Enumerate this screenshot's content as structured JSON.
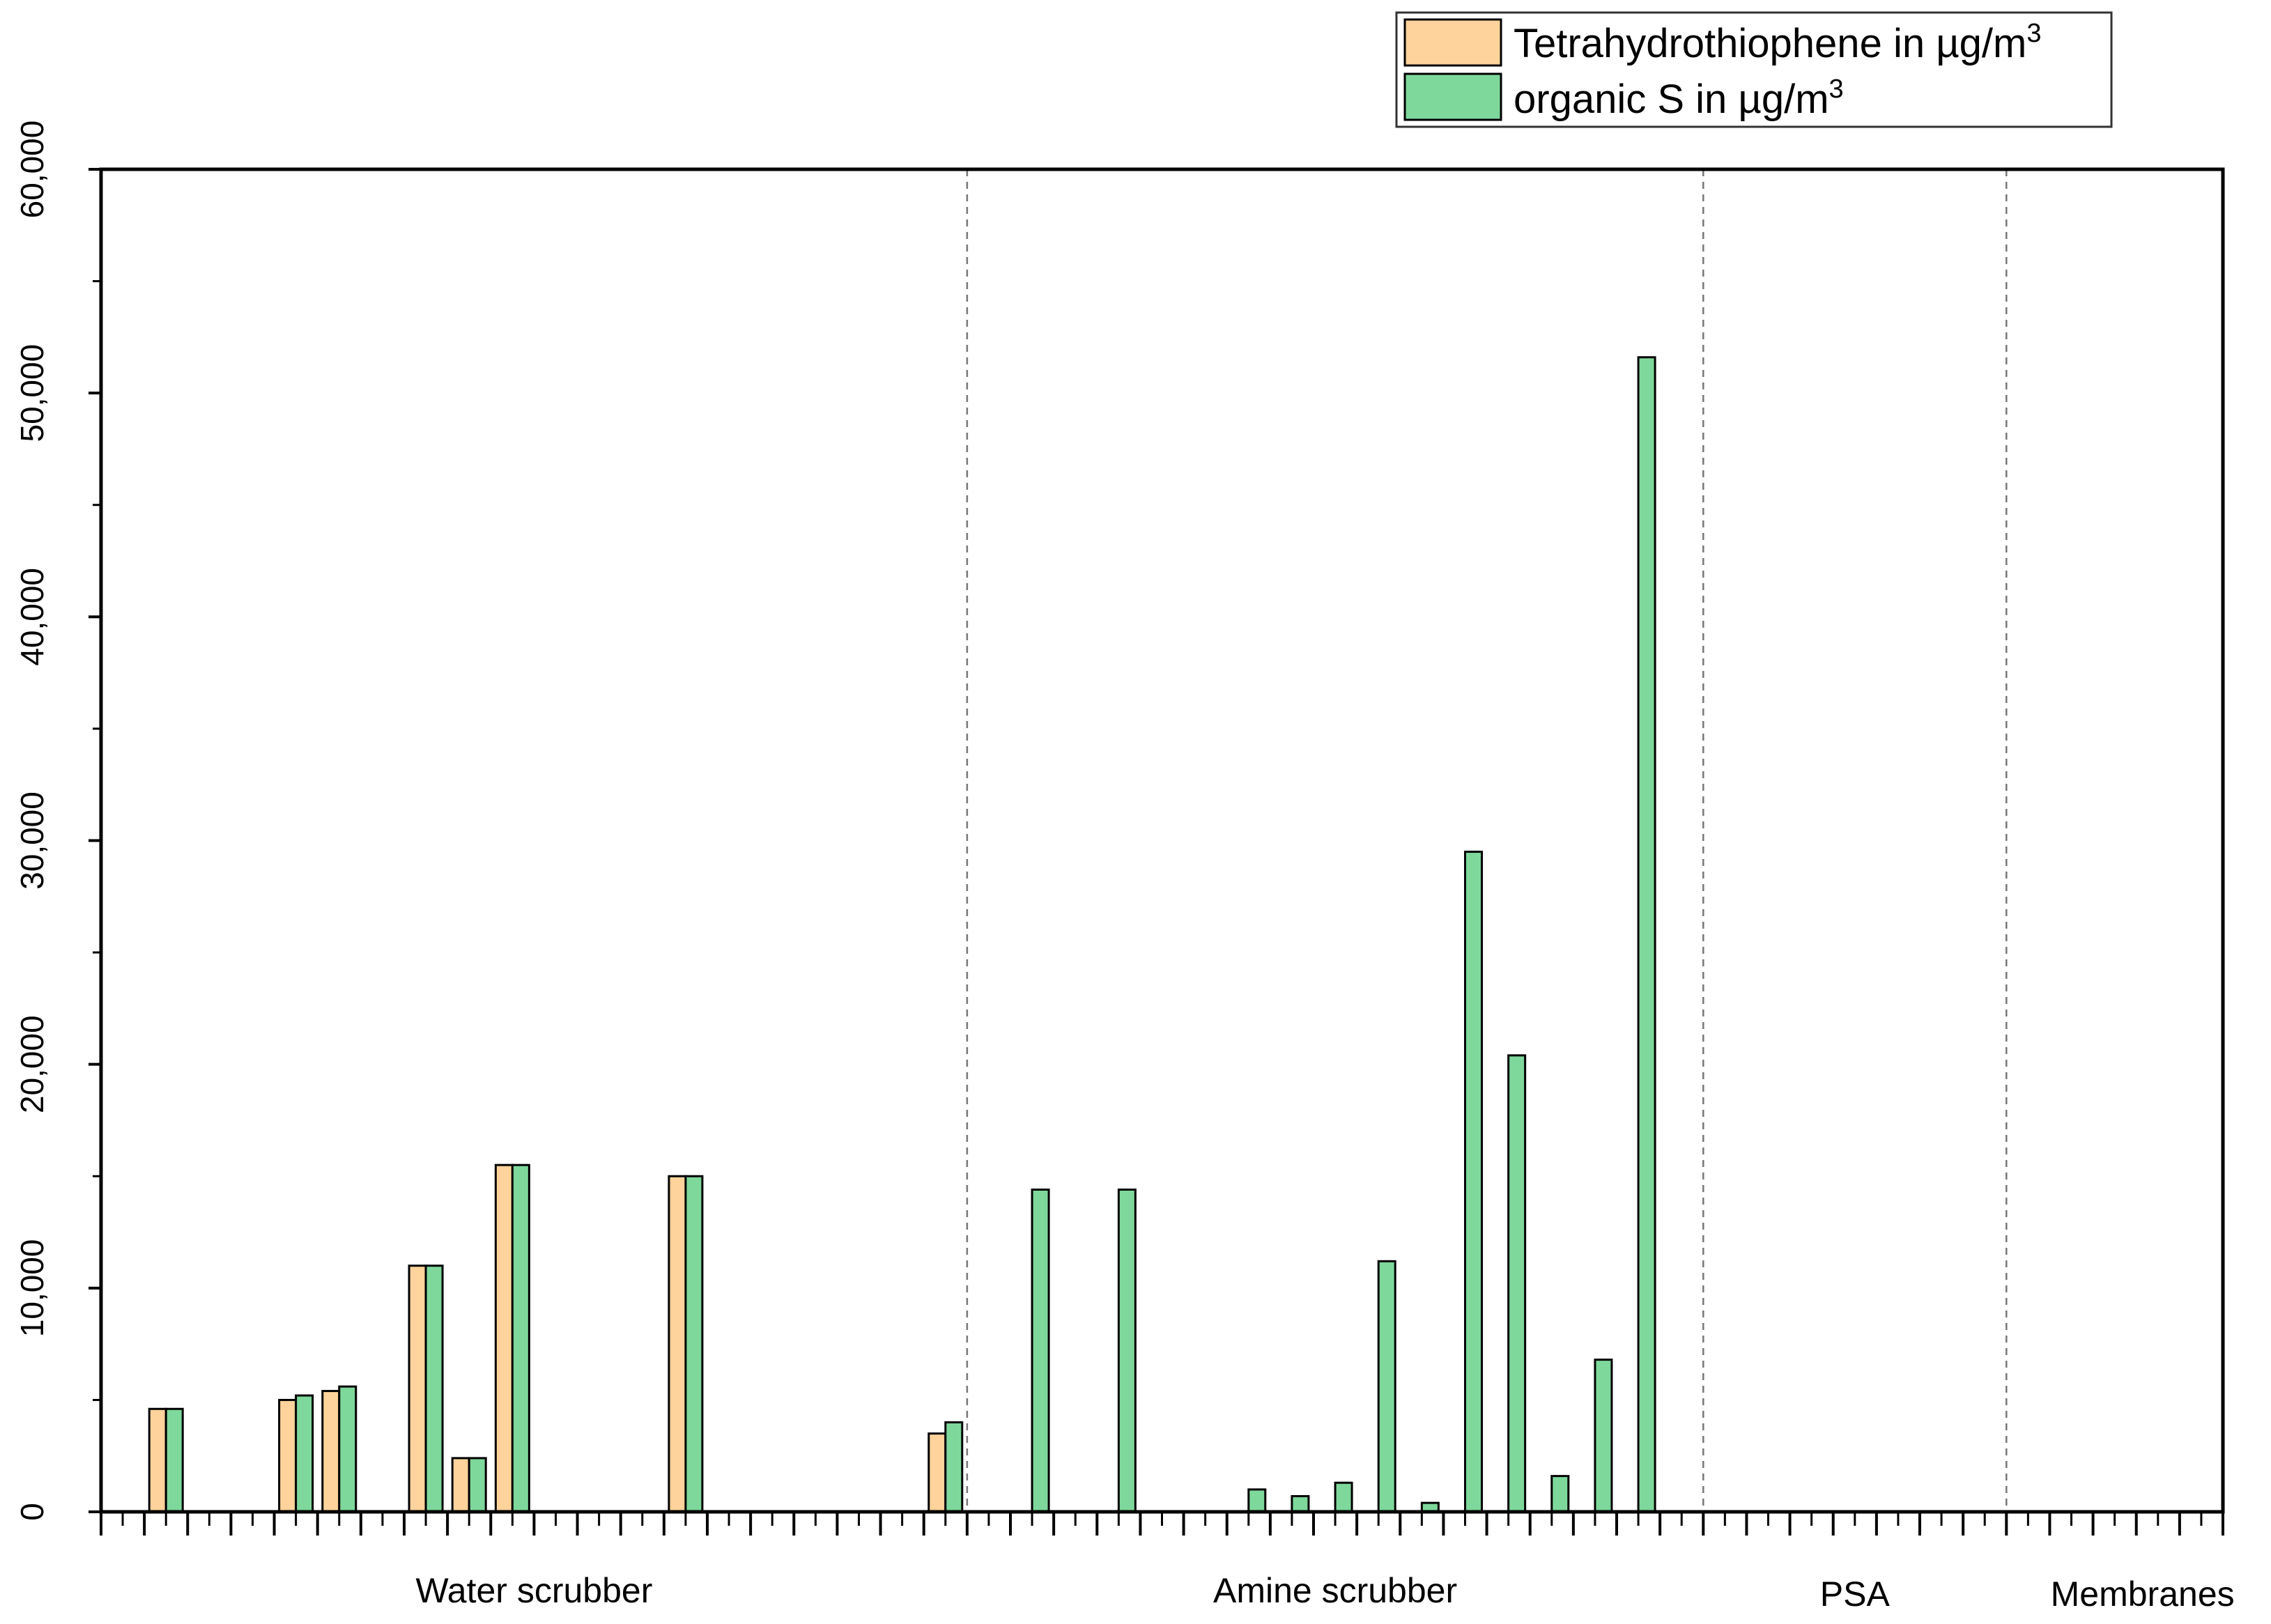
{
  "chart_data": {
    "type": "bar",
    "ylim": [
      0,
      60000
    ],
    "y_ticks": [
      "0",
      "10,000",
      "20,000",
      "30,000",
      "40,000",
      "50,000",
      "60,000"
    ],
    "y_tick_values": [
      0,
      10000,
      20000,
      30000,
      40000,
      50000,
      60000
    ],
    "x_slots": 49,
    "groups": [
      {
        "label": "Water scrubber",
        "start": 0,
        "end": 20
      },
      {
        "label": "Amine scrubber",
        "start": 20,
        "end": 37
      },
      {
        "label": "PSA",
        "start": 37,
        "end": 44
      },
      {
        "label": "Membranes",
        "start": 44,
        "end": 49
      }
    ],
    "legend": {
      "placement": "top-right",
      "entries": [
        {
          "key": "tht",
          "label": "Tetrahydrothiophene in µg/m",
          "sup": "3",
          "color": "#FFD39B"
        },
        {
          "key": "orgS",
          "label": "organic S in µg/m",
          "sup": "3",
          "color": "#7ED89B"
        }
      ]
    },
    "series": [
      {
        "key": "tht",
        "color": "#FFD39B",
        "points": [
          {
            "slot": 1,
            "value": 4600
          },
          {
            "slot": 4,
            "value": 5000
          },
          {
            "slot": 5,
            "value": 5400
          },
          {
            "slot": 7,
            "value": 11000
          },
          {
            "slot": 8,
            "value": 2400
          },
          {
            "slot": 9,
            "value": 15500
          },
          {
            "slot": 13,
            "value": 15000
          },
          {
            "slot": 19,
            "value": 3500
          }
        ]
      },
      {
        "key": "orgS",
        "color": "#7ED89B",
        "points": [
          {
            "slot": 1,
            "value": 4600
          },
          {
            "slot": 4,
            "value": 5200
          },
          {
            "slot": 5,
            "value": 5600
          },
          {
            "slot": 7,
            "value": 11000
          },
          {
            "slot": 8,
            "value": 2400
          },
          {
            "slot": 9,
            "value": 15500
          },
          {
            "slot": 13,
            "value": 15000
          },
          {
            "slot": 19,
            "value": 4000
          },
          {
            "slot": 21,
            "value": 14400
          },
          {
            "slot": 23,
            "value": 14400
          },
          {
            "slot": 26,
            "value": 1000
          },
          {
            "slot": 27,
            "value": 700
          },
          {
            "slot": 28,
            "value": 1300
          },
          {
            "slot": 29,
            "value": 11200
          },
          {
            "slot": 30,
            "value": 400
          },
          {
            "slot": 31,
            "value": 29500
          },
          {
            "slot": 32,
            "value": 20400
          },
          {
            "slot": 33,
            "value": 1600
          },
          {
            "slot": 34,
            "value": 6800
          },
          {
            "slot": 35,
            "value": 51600
          }
        ]
      }
    ]
  }
}
